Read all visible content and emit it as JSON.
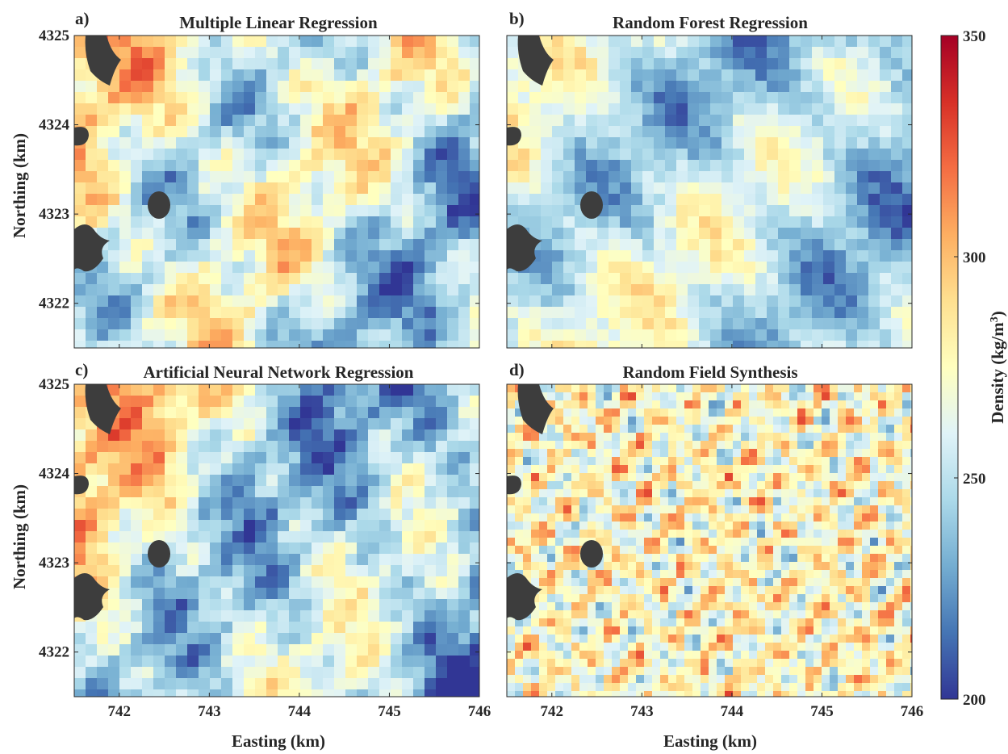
{
  "chart_data": {
    "type": "heatmap",
    "layout": "2x2 grid of maps with shared colorbar on the right",
    "xlabel": "Easting (km)",
    "ylabel": "Northing (km)",
    "xlim": [
      741.5,
      746
    ],
    "ylim": [
      4321.5,
      4325
    ],
    "xticks": [
      742,
      743,
      744,
      745,
      746
    ],
    "yticks": [
      4322,
      4323,
      4324,
      4325
    ],
    "colorbar": {
      "label_main": "Density (kg/m",
      "label_sup": "3",
      "label_close": ")",
      "min": 200,
      "max": 350,
      "ticks": [
        200,
        250,
        300,
        350
      ],
      "colormap": [
        "#313695",
        "#4575b4",
        "#74add1",
        "#abd9e9",
        "#e0f3f8",
        "#ffffbf",
        "#fee090",
        "#fdae61",
        "#f46d43",
        "#d73027",
        "#a50026"
      ]
    },
    "mask_color": "#3d3d3d",
    "panels": [
      {
        "id": "a",
        "label": "a)",
        "title": "Multiple Linear Regression",
        "pattern": "mostly light yellow-blue mix with orange streaks in west, blue patches in center-east; values roughly 230-320"
      },
      {
        "id": "b",
        "label": "b)",
        "title": "Random Forest Regression",
        "pattern": "light blue dominant, orange streaks in west and southeast, uniform blue in northeast; values roughly 230-320"
      },
      {
        "id": "c",
        "label": "c)",
        "title": "Artificial Neural Network Regression",
        "pattern": "orange patches in north-west, deep blue patches in east; values roughly 210-320"
      },
      {
        "id": "d",
        "label": "d)",
        "title": "Random Field Synthesis",
        "pattern": "fine-grained random speckle of orange and blue across entire extent; values roughly 230-320"
      }
    ]
  }
}
